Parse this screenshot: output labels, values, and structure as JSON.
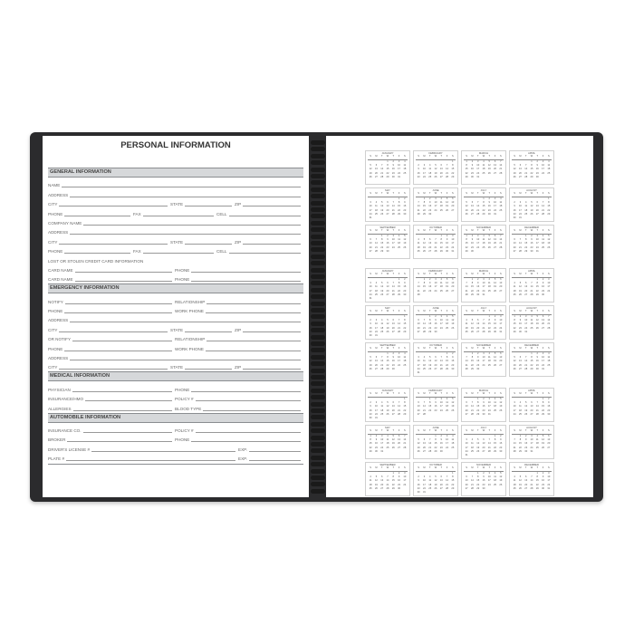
{
  "left_page": {
    "title": "PERSONAL INFORMATION",
    "sections": [
      {
        "heading": "GENERAL INFORMATION",
        "rows": [
          {
            "kind": "one",
            "fields": [
              "NAME"
            ]
          },
          {
            "kind": "one",
            "fields": [
              "ADDRESS"
            ]
          },
          {
            "kind": "city",
            "fields": [
              "CITY",
              "STATE",
              "ZIP"
            ]
          },
          {
            "kind": "phone",
            "fields": [
              "PHONE",
              "FAX",
              "CELL"
            ]
          },
          {
            "kind": "one",
            "fields": [
              "COMPANY NAME"
            ]
          },
          {
            "kind": "one",
            "fields": [
              "ADDRESS"
            ]
          },
          {
            "kind": "city",
            "fields": [
              "CITY",
              "STATE",
              "ZIP"
            ]
          },
          {
            "kind": "phone",
            "fields": [
              "PHONE",
              "FAX",
              "CELL"
            ]
          },
          {
            "kind": "note",
            "fields": [
              "LOST OR STOLEN CREDIT CARD INFORMATION"
            ]
          },
          {
            "kind": "two",
            "fields": [
              "CARD NAME",
              "PHONE"
            ]
          },
          {
            "kind": "two",
            "fields": [
              "CARD NAME",
              "PHONE"
            ]
          }
        ]
      },
      {
        "heading": "EMERGENCY INFORMATION",
        "rows": [
          {
            "kind": "two",
            "fields": [
              "NOTIFY",
              "RELATIONSHIP"
            ]
          },
          {
            "kind": "two",
            "fields": [
              "PHONE",
              "WORK PHONE"
            ]
          },
          {
            "kind": "one",
            "fields": [
              "ADDRESS"
            ]
          },
          {
            "kind": "city",
            "fields": [
              "CITY",
              "STATE",
              "ZIP"
            ]
          },
          {
            "kind": "two",
            "fields": [
              "OR NOTIFY",
              "RELATIONSHIP"
            ]
          },
          {
            "kind": "two",
            "fields": [
              "PHONE",
              "WORK PHONE"
            ]
          },
          {
            "kind": "one",
            "fields": [
              "ADDRESS"
            ]
          },
          {
            "kind": "city",
            "fields": [
              "CITY",
              "STATE",
              "ZIP"
            ]
          }
        ]
      },
      {
        "heading": "MEDICAL INFORMATION",
        "rows": [
          {
            "kind": "two",
            "fields": [
              "PHYSICIAN",
              "PHONE"
            ]
          },
          {
            "kind": "two",
            "fields": [
              "INSURANCE/HMO",
              "POLICY #"
            ]
          },
          {
            "kind": "two",
            "fields": [
              "ALLERGIES",
              "BLOOD TYPE"
            ]
          }
        ]
      },
      {
        "heading": "AUTOMOBILE INFORMATION",
        "rows": [
          {
            "kind": "two",
            "fields": [
              "INSURANCE CO.",
              "POLICY #"
            ]
          },
          {
            "kind": "two",
            "fields": [
              "BROKER",
              "PHONE"
            ]
          },
          {
            "kind": "exp",
            "fields": [
              "DRIVER'S LICENSE #",
              "EXP."
            ]
          },
          {
            "kind": "exp",
            "fields": [
              "PLATE #",
              "EXP."
            ]
          }
        ]
      }
    ]
  },
  "right_page": {
    "weekday_headers": [
      "S",
      "M",
      "T",
      "W",
      "T",
      "F",
      "S"
    ],
    "month_names": [
      "JANUARY",
      "FEBRUARY",
      "MARCH",
      "APRIL",
      "MAY",
      "JUNE",
      "JULY",
      "AUGUST",
      "SEPTEMBER",
      "OCTOBER",
      "NOVEMBER",
      "DECEMBER"
    ],
    "calendars": [
      {
        "first_weekday": [
          3,
          6,
          0,
          3,
          5,
          1,
          3,
          6,
          2,
          4,
          0,
          2
        ],
        "days": [
          31,
          29,
          31,
          30,
          31,
          30,
          31,
          31,
          30,
          31,
          30,
          31
        ]
      },
      {
        "first_weekday": [
          5,
          1,
          1,
          4,
          6,
          2,
          4,
          0,
          3,
          5,
          1,
          3
        ],
        "days": [
          31,
          28,
          31,
          30,
          31,
          30,
          31,
          31,
          30,
          31,
          30,
          31
        ]
      },
      {
        "first_weekday": [
          6,
          2,
          2,
          5,
          0,
          3,
          5,
          1,
          4,
          6,
          2,
          4
        ],
        "days": [
          31,
          28,
          31,
          30,
          31,
          30,
          31,
          31,
          30,
          31,
          30,
          31
        ]
      }
    ]
  },
  "colors": {
    "cover": "#2b2b2d",
    "section_bar": "#d6d8da"
  }
}
